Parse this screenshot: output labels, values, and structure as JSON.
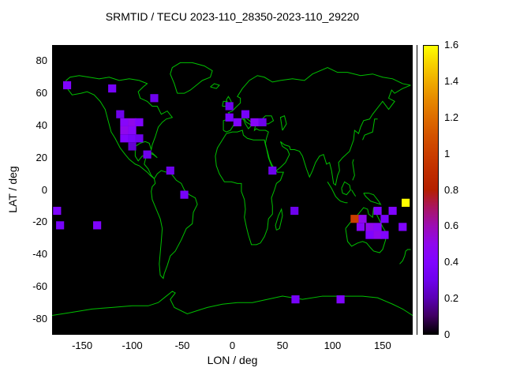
{
  "title": "SRMTID / TECU 2023-110_28350-2023-110_29220",
  "axes": {
    "x": {
      "label": "LON / deg",
      "ticks": [
        -150,
        -100,
        -50,
        0,
        50,
        100,
        150
      ]
    },
    "y": {
      "label": "LAT / deg",
      "ticks": [
        -80,
        -60,
        -40,
        -20,
        0,
        20,
        40,
        60,
        80
      ]
    }
  },
  "colorbar": {
    "min": 0,
    "max": 1.6,
    "tick_labels": [
      "0",
      "0.2",
      "0.4",
      "0.6",
      "0.8",
      "1",
      "1.2",
      "1.4",
      "1.6"
    ],
    "palette": "gnuplot-pm3d (black-purple-red-yellow)"
  },
  "colors": {
    "background": "#ffffff",
    "plot_background": "#000000",
    "coastline": "#00c000",
    "text": "#000000"
  },
  "chart_data": {
    "type": "heatmap",
    "title": "SRMTID / TECU 2023-110_28350-2023-110_29220",
    "xlabel": "LON / deg",
    "ylabel": "LAT / deg",
    "xlim": [
      -180,
      180
    ],
    "ylim": [
      -90,
      90
    ],
    "value_range": [
      0,
      1.6
    ],
    "value_units": "TECU",
    "cell_size_deg": {
      "lon": 8,
      "lat": 5
    },
    "cells": [
      {
        "lon": -165,
        "lat": 65,
        "v": 0.4
      },
      {
        "lon": -120,
        "lat": 63,
        "v": 0.35
      },
      {
        "lon": -78,
        "lat": 57,
        "v": 0.3
      },
      {
        "lon": -112,
        "lat": 47,
        "v": 0.3
      },
      {
        "lon": -108,
        "lat": 42,
        "v": 0.45
      },
      {
        "lon": -100,
        "lat": 42,
        "v": 0.5
      },
      {
        "lon": -93,
        "lat": 42,
        "v": 0.4
      },
      {
        "lon": -108,
        "lat": 37,
        "v": 0.5
      },
      {
        "lon": -100,
        "lat": 37,
        "v": 0.45
      },
      {
        "lon": -108,
        "lat": 32,
        "v": 0.4
      },
      {
        "lon": -100,
        "lat": 32,
        "v": 0.35
      },
      {
        "lon": -93,
        "lat": 32,
        "v": 0.3
      },
      {
        "lon": -100,
        "lat": 27,
        "v": 0.25
      },
      {
        "lon": -85,
        "lat": 22,
        "v": 0.3
      },
      {
        "lon": -62,
        "lat": 12,
        "v": 0.3
      },
      {
        "lon": -48,
        "lat": -3,
        "v": 0.35
      },
      {
        "lon": -175,
        "lat": -13,
        "v": 0.4
      },
      {
        "lon": -172,
        "lat": -22,
        "v": 0.35
      },
      {
        "lon": -135,
        "lat": -22,
        "v": 0.4
      },
      {
        "lon": -3,
        "lat": 52,
        "v": 0.3
      },
      {
        "lon": -3,
        "lat": 45,
        "v": 0.35
      },
      {
        "lon": 5,
        "lat": 42,
        "v": 0.4
      },
      {
        "lon": 13,
        "lat": 47,
        "v": 0.35
      },
      {
        "lon": 22,
        "lat": 42,
        "v": 0.45
      },
      {
        "lon": 30,
        "lat": 42,
        "v": 0.3
      },
      {
        "lon": 40,
        "lat": 12,
        "v": 0.3
      },
      {
        "lon": 62,
        "lat": -13,
        "v": 0.3
      },
      {
        "lon": 145,
        "lat": -13,
        "v": 0.4
      },
      {
        "lon": 160,
        "lat": -13,
        "v": 0.4
      },
      {
        "lon": 122,
        "lat": -18,
        "v": 1.0
      },
      {
        "lon": 130,
        "lat": -18,
        "v": 0.5
      },
      {
        "lon": 152,
        "lat": -18,
        "v": 0.35
      },
      {
        "lon": 128,
        "lat": -23,
        "v": 0.45
      },
      {
        "lon": 137,
        "lat": -23,
        "v": 0.5
      },
      {
        "lon": 145,
        "lat": -23,
        "v": 0.45
      },
      {
        "lon": 170,
        "lat": -23,
        "v": 0.4
      },
      {
        "lon": 137,
        "lat": -28,
        "v": 0.4
      },
      {
        "lon": 145,
        "lat": -28,
        "v": 0.5
      },
      {
        "lon": 152,
        "lat": -28,
        "v": 0.4
      },
      {
        "lon": 173,
        "lat": -8,
        "v": 1.6
      },
      {
        "lon": 63,
        "lat": -68,
        "v": 0.35
      },
      {
        "lon": 108,
        "lat": -68,
        "v": 0.4
      }
    ]
  }
}
